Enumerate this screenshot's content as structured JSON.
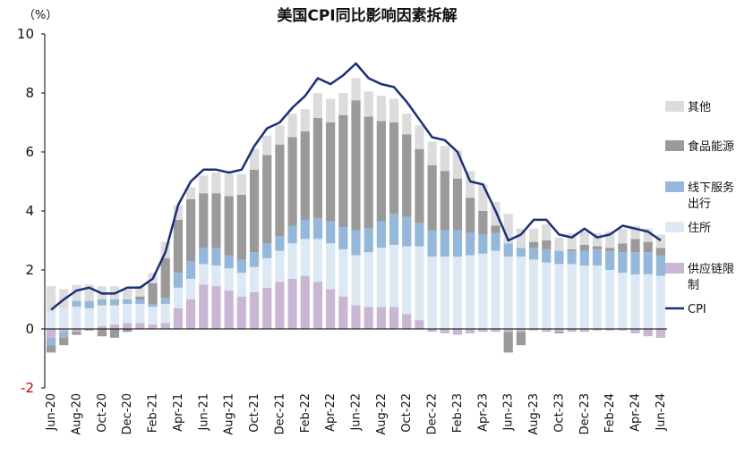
{
  "chart_data": {
    "type": "bar",
    "stacked": true,
    "title": "美国CPI同比影响因素拆解",
    "unit_label": "（%）",
    "ylim": [
      -2,
      10
    ],
    "yticks": [
      -2,
      0,
      2,
      4,
      6,
      8,
      10
    ],
    "grid": false,
    "legend_position": "right",
    "months": [
      "Jun-20",
      "Jul-20",
      "Aug-20",
      "Sep-20",
      "Oct-20",
      "Nov-20",
      "Dec-20",
      "Jan-21",
      "Feb-21",
      "Mar-21",
      "Apr-21",
      "May-21",
      "Jun-21",
      "Jul-21",
      "Aug-21",
      "Sep-21",
      "Oct-21",
      "Nov-21",
      "Dec-21",
      "Jan-22",
      "Feb-22",
      "Mar-22",
      "Apr-22",
      "May-22",
      "Jun-22",
      "Jul-22",
      "Aug-22",
      "Sep-22",
      "Oct-22",
      "Nov-22",
      "Dec-22",
      "Jan-23",
      "Feb-23",
      "Mar-23",
      "Apr-23",
      "May-23",
      "Jun-23",
      "Jul-23",
      "Aug-23",
      "Sep-23",
      "Oct-23",
      "Nov-23",
      "Dec-23",
      "Jan-24",
      "Feb-24",
      "Mar-24",
      "Apr-24",
      "May-24",
      "Jun-24"
    ],
    "tick_labels": [
      "Jun-20",
      "Aug-20",
      "Oct-20",
      "Dec-20",
      "Feb-21",
      "Apr-21",
      "Jun-21",
      "Aug-21",
      "Oct-21",
      "Dec-21",
      "Feb-22",
      "Apr-22",
      "Jun-22",
      "Aug-22",
      "Oct-22",
      "Dec-22",
      "Feb-23",
      "Apr-23",
      "Jun-23",
      "Aug-23",
      "Oct-23",
      "Dec-23",
      "Feb-24",
      "Apr-24",
      "Jun-24"
    ],
    "series": [
      {
        "name": "供应链限制",
        "color": "#c9b6d4",
        "values": [
          -0.3,
          -0.1,
          -0.1,
          0.0,
          0.1,
          0.15,
          0.2,
          0.2,
          0.15,
          0.2,
          0.7,
          1.0,
          1.5,
          1.45,
          1.3,
          1.1,
          1.25,
          1.4,
          1.6,
          1.7,
          1.8,
          1.6,
          1.35,
          1.1,
          0.8,
          0.75,
          0.75,
          0.75,
          0.5,
          0.3,
          -0.1,
          -0.15,
          -0.2,
          -0.15,
          -0.1,
          -0.1,
          -0.1,
          -0.1,
          -0.05,
          -0.1,
          -0.1,
          -0.1,
          -0.1,
          -0.05,
          -0.05,
          -0.05,
          -0.15,
          -0.25,
          -0.3
        ]
      },
      {
        "name": "住所",
        "color": "#dde8f5",
        "values": [
          0.6,
          0.7,
          0.75,
          0.7,
          0.7,
          0.65,
          0.65,
          0.65,
          0.6,
          0.65,
          0.7,
          0.7,
          0.7,
          0.7,
          0.75,
          0.8,
          0.85,
          1.0,
          1.05,
          1.2,
          1.25,
          1.45,
          1.55,
          1.6,
          1.7,
          1.85,
          2.0,
          2.1,
          2.3,
          2.5,
          2.45,
          2.45,
          2.45,
          2.5,
          2.55,
          2.65,
          2.45,
          2.45,
          2.35,
          2.25,
          2.2,
          2.2,
          2.15,
          2.15,
          2.0,
          1.9,
          1.85,
          1.85,
          1.8
        ]
      },
      {
        "name": "线下服务出行",
        "color": "#94b8dc",
        "values": [
          -0.25,
          -0.2,
          0.2,
          0.25,
          0.2,
          0.2,
          0.15,
          0.15,
          0.1,
          0.2,
          0.5,
          0.6,
          0.55,
          0.6,
          0.45,
          0.45,
          0.5,
          0.5,
          0.5,
          0.6,
          0.65,
          0.7,
          0.75,
          0.75,
          0.85,
          0.8,
          0.9,
          1.05,
          1.0,
          0.8,
          0.9,
          0.9,
          0.9,
          0.75,
          0.65,
          0.6,
          0.45,
          0.3,
          0.4,
          0.45,
          0.45,
          0.45,
          0.5,
          0.55,
          0.65,
          0.7,
          0.75,
          0.75,
          0.7
        ]
      },
      {
        "name": "食品能源",
        "color": "#9a9a9a",
        "values": [
          -0.25,
          -0.25,
          -0.1,
          -0.05,
          -0.25,
          -0.3,
          -0.1,
          0.1,
          0.7,
          1.35,
          1.8,
          2.1,
          1.85,
          1.85,
          2.0,
          2.2,
          2.8,
          3.0,
          3.1,
          3.0,
          3.0,
          3.4,
          3.35,
          3.8,
          4.4,
          3.8,
          3.4,
          3.1,
          2.8,
          2.5,
          2.2,
          2.0,
          1.75,
          1.2,
          0.8,
          0.25,
          -0.7,
          -0.45,
          0.2,
          0.3,
          -0.05,
          0.05,
          0.2,
          0.1,
          0.1,
          0.3,
          0.45,
          0.35,
          0.25
        ]
      },
      {
        "name": "其他",
        "color": "#dcdcdc",
        "values": [
          0.85,
          0.65,
          0.55,
          0.55,
          0.45,
          0.45,
          0.35,
          0.35,
          0.35,
          0.55,
          0.5,
          0.4,
          0.6,
          0.7,
          0.75,
          0.7,
          0.7,
          0.65,
          0.65,
          0.8,
          0.75,
          0.85,
          0.8,
          0.75,
          0.75,
          0.85,
          0.85,
          0.8,
          0.7,
          0.8,
          0.8,
          0.85,
          0.95,
          0.9,
          0.9,
          0.8,
          1.0,
          0.65,
          0.45,
          0.55,
          0.45,
          0.55,
          0.45,
          0.45,
          0.55,
          0.5,
          0.45,
          0.45,
          0.45
        ]
      },
      {
        "name": "CPI",
        "type": "line",
        "color": "#1c2f7a",
        "values": [
          0.65,
          1.0,
          1.3,
          1.4,
          1.2,
          1.2,
          1.4,
          1.4,
          1.7,
          2.6,
          4.2,
          5.0,
          5.4,
          5.4,
          5.3,
          5.4,
          6.2,
          6.8,
          7.0,
          7.5,
          7.9,
          8.5,
          8.3,
          8.6,
          9.0,
          8.5,
          8.3,
          8.2,
          7.7,
          7.1,
          6.5,
          6.4,
          6.0,
          5.0,
          4.9,
          4.0,
          3.0,
          3.2,
          3.7,
          3.7,
          3.2,
          3.1,
          3.4,
          3.1,
          3.2,
          3.5,
          3.4,
          3.3,
          3.0
        ]
      }
    ],
    "legend_order": [
      "其他",
      "食品能源",
      "线下服务出行",
      "住所",
      "供应链限制",
      "CPI"
    ],
    "legend_text": {
      "其他": [
        "其他"
      ],
      "食品能源": [
        "食品能源"
      ],
      "线下服务出行": [
        "线下服务",
        "出行"
      ],
      "住所": [
        "住所"
      ],
      "供应链限制": [
        "供应链限",
        "制"
      ],
      "CPI": [
        "CPI"
      ]
    }
  }
}
